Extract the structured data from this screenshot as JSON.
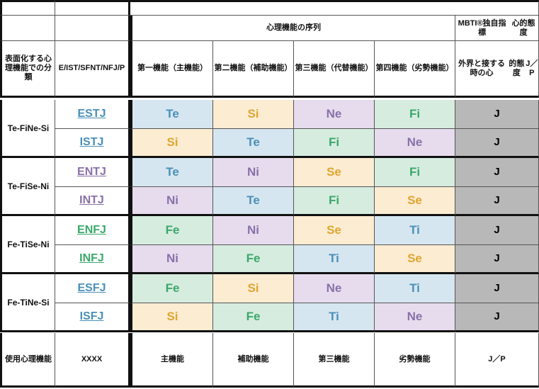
{
  "header": {
    "sequence_title": "心理機能の序列",
    "mbti_title_line1": "MBTI®独自指標",
    "mbti_title_line2": "心的態度",
    "col_classification": "表面化する心理機能での分類",
    "col_dims": [
      "E/I",
      "ST/SF",
      "NT/NF",
      "J/P"
    ],
    "col_func1": [
      "第一機能",
      "（主機能）"
    ],
    "col_func2": [
      "第二機能",
      "（補助機能）"
    ],
    "col_func3": [
      "第三機能",
      "（代替機能）"
    ],
    "col_func4": [
      "第四機能",
      "（劣勢機能）"
    ],
    "col_attitude": [
      "外界と接する時の心",
      "的態度",
      "J／P"
    ]
  },
  "colors": {
    "Te": "#d6e6f0",
    "Ti": "#d6e6f0",
    "Si": "#fbecd2",
    "Se": "#fbecd2",
    "Ne": "#e6dcee",
    "Ni": "#e6dcee",
    "Fi": "#d6ecdf",
    "Fe": "#d6ecdf",
    "attitude_bg": "#b8b8b8",
    "text_T": "#4a90b8",
    "text_S": "#e0a630",
    "text_N": "#8a70a8",
    "text_F": "#3aa86a"
  },
  "groups": [
    {
      "label": [
        "Te-Fi",
        "Ne-Si"
      ],
      "rows": [
        {
          "type": "ESTJ",
          "funcs": [
            "Te",
            "Si",
            "Ne",
            "Fi"
          ],
          "attitude": "J"
        },
        {
          "type": "ISTJ",
          "funcs": [
            "Si",
            "Te",
            "Fi",
            "Ne"
          ],
          "attitude": "J"
        }
      ]
    },
    {
      "label": [
        "Te-Fi",
        "Se-Ni"
      ],
      "rows": [
        {
          "type": "ENTJ",
          "funcs": [
            "Te",
            "Ni",
            "Se",
            "Fi"
          ],
          "attitude": "J"
        },
        {
          "type": "INTJ",
          "funcs": [
            "Ni",
            "Te",
            "Fi",
            "Se"
          ],
          "attitude": "J"
        }
      ]
    },
    {
      "label": [
        "Fe-Ti",
        "Se-Ni"
      ],
      "rows": [
        {
          "type": "ENFJ",
          "funcs": [
            "Fe",
            "Ni",
            "Se",
            "Ti"
          ],
          "attitude": "J"
        },
        {
          "type": "INFJ",
          "funcs": [
            "Ni",
            "Fe",
            "Ti",
            "Se"
          ],
          "attitude": "J"
        }
      ]
    },
    {
      "label": [
        "Fe-Ti",
        "Ne-Si"
      ],
      "rows": [
        {
          "type": "ESFJ",
          "funcs": [
            "Fe",
            "Si",
            "Ne",
            "Ti"
          ],
          "attitude": "J"
        },
        {
          "type": "ISFJ",
          "funcs": [
            "Si",
            "Fe",
            "Ti",
            "Ne"
          ],
          "attitude": "J"
        }
      ]
    }
  ],
  "type_colors": {
    "ESTJ": "#4a90b8",
    "ISTJ": "#4a90b8",
    "ENTJ": "#8a70a8",
    "INTJ": "#8a70a8",
    "ENFJ": "#3aa86a",
    "INFJ": "#3aa86a",
    "ESFJ": "#4a90b8",
    "ISFJ": "#4a90b8"
  },
  "footer": {
    "label": [
      "使用心理機",
      "能"
    ],
    "code": "XXXX",
    "func1": "主機能",
    "func2": "補助機能",
    "func3": "第三機能",
    "func4": "劣勢機能",
    "attitude": "J／P"
  }
}
